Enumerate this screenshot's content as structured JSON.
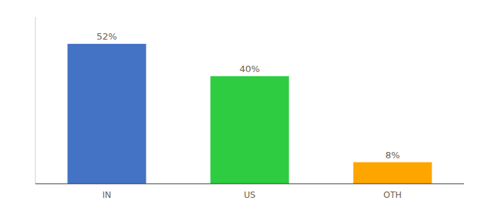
{
  "chart_data": {
    "type": "bar",
    "categories": [
      "IN",
      "US",
      "OTH"
    ],
    "values": [
      52,
      40,
      8
    ],
    "value_labels": [
      "52%",
      "40%",
      "8%"
    ],
    "colors": [
      "#4472C4",
      "#2ECC40",
      "#FFA500"
    ],
    "ylim": [
      0,
      62
    ],
    "data_labels": true,
    "tick_labels": "x"
  }
}
